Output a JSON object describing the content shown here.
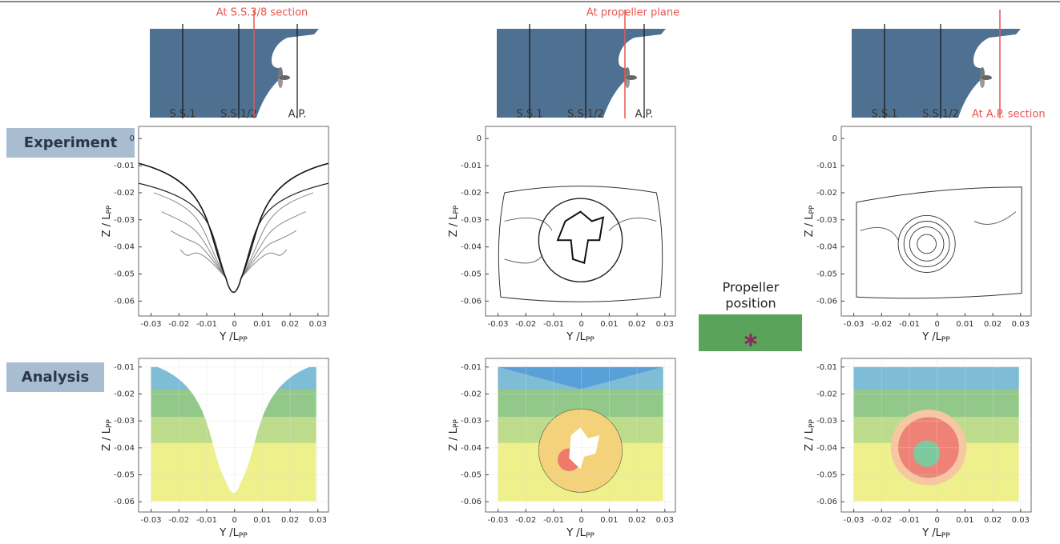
{
  "sections": [
    {
      "title": "At S.S.3/8 section",
      "stations": [
        "S.S.1",
        "S.S.1/2",
        "A.P."
      ]
    },
    {
      "title": "At propeller plane",
      "stations": [
        "S.S.1",
        "S.S.1/2",
        "A.P."
      ]
    },
    {
      "title": "At A.P. section",
      "stations": [
        "S.S.1",
        "S.S.1/2"
      ]
    }
  ],
  "rows": [
    "Experiment",
    "Analysis"
  ],
  "propeller_label": [
    "Propeller",
    "position"
  ],
  "axis_labels": {
    "x": {
      "main": "Y /L",
      "sub": "PP"
    },
    "y": {
      "main": "Z / L",
      "sub": "PP"
    }
  },
  "panels": [
    {
      "row": 0,
      "col": 0,
      "xlim": [
        -0.0345,
        0.0338
      ],
      "ylim": [
        0.0045,
        -0.0655
      ],
      "xticks": [
        -0.03,
        -0.02,
        -0.01,
        0,
        0.01,
        0.02,
        0.03
      ],
      "yticks": [
        0,
        -0.01,
        -0.02,
        -0.03,
        -0.04,
        -0.05,
        -0.06
      ],
      "grid": false
    },
    {
      "row": 0,
      "col": 1,
      "xlim": [
        -0.0345,
        0.0338
      ],
      "ylim": [
        0.0045,
        -0.0655
      ],
      "xticks": [
        -0.03,
        -0.02,
        -0.01,
        0,
        0.01,
        0.02,
        0.03
      ],
      "yticks": [
        0,
        -0.01,
        -0.02,
        -0.03,
        -0.04,
        -0.05,
        -0.06
      ],
      "grid": false
    },
    {
      "row": 0,
      "col": 2,
      "xlim": [
        -0.0345,
        0.0338
      ],
      "ylim": [
        0.0045,
        -0.0655
      ],
      "xticks": [
        -0.03,
        -0.02,
        -0.01,
        0,
        0.01,
        0.02,
        0.03
      ],
      "yticks": [
        0,
        -0.01,
        -0.02,
        -0.03,
        -0.04,
        -0.05,
        -0.06
      ],
      "grid": false
    },
    {
      "row": 1,
      "col": 0,
      "xlim": [
        -0.0345,
        0.0338
      ],
      "ylim": [
        -0.0068,
        -0.0638
      ],
      "xticks": [
        -0.03,
        -0.02,
        -0.01,
        0,
        0.01,
        0.02,
        0.03
      ],
      "yticks": [
        -0.01,
        -0.02,
        -0.03,
        -0.04,
        -0.05,
        -0.06
      ],
      "grid": true
    },
    {
      "row": 1,
      "col": 1,
      "xlim": [
        -0.0345,
        0.0338
      ],
      "ylim": [
        -0.0068,
        -0.0638
      ],
      "xticks": [
        -0.03,
        -0.02,
        -0.01,
        0,
        0.01,
        0.02,
        0.03
      ],
      "yticks": [
        -0.01,
        -0.02,
        -0.03,
        -0.04,
        -0.05,
        -0.06
      ],
      "grid": true
    },
    {
      "row": 1,
      "col": 2,
      "xlim": [
        -0.0345,
        0.0338
      ],
      "ylim": [
        -0.0068,
        -0.0638
      ],
      "xticks": [
        -0.03,
        -0.02,
        -0.01,
        0,
        0.01,
        0.02,
        0.03
      ],
      "yticks": [
        -0.01,
        -0.02,
        -0.03,
        -0.04,
        -0.05,
        -0.06
      ],
      "grid": true
    }
  ]
}
